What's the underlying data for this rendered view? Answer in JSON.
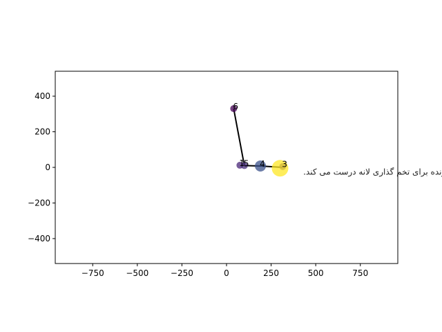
{
  "chart_data": {
    "type": "scatter",
    "title": "",
    "xlabel": "",
    "ylabel": "",
    "xlim": [
      -960,
      960
    ],
    "ylim": [
      -540,
      540
    ],
    "xticks": [
      -750,
      -500,
      -250,
      0,
      250,
      500,
      750
    ],
    "yticks": [
      -400,
      -200,
      0,
      200,
      400
    ],
    "xtick_labels": [
      "−750",
      "−500",
      "−250",
      "0",
      "250",
      "500",
      "750"
    ],
    "ytick_labels": [
      "−400",
      "−200",
      "0",
      "200",
      "400"
    ],
    "grid": false,
    "colormap": "viridis",
    "points": [
      {
        "label": "6",
        "x": 40,
        "y": 330,
        "size": 5,
        "color": "#440154"
      },
      {
        "label": "1",
        "x": 75,
        "y": 12,
        "size": 5,
        "color": "#482677"
      },
      {
        "label": "5",
        "x": 100,
        "y": 10,
        "size": 5,
        "color": "#472d7b"
      },
      {
        "label": "4",
        "x": 190,
        "y": 8,
        "size": 8,
        "color": "#3b528b"
      },
      {
        "label": "3",
        "x": 315,
        "y": 5,
        "size": 5,
        "color": "#482878"
      },
      {
        "label": "",
        "x": 300,
        "y": -5,
        "size": 12,
        "color": "#fde725"
      }
    ],
    "edges": [
      [
        [
          40,
          330
        ],
        [
          100,
          10
        ]
      ],
      [
        [
          100,
          10
        ],
        [
          190,
          8
        ]
      ],
      [
        [
          190,
          8
        ],
        [
          315,
          0
        ]
      ]
    ],
    "annotations": [
      {
        "text": "پرنده برای تخم گذاری لانه درست می کند.",
        "x": 430,
        "y": -40,
        "anchor": "end"
      }
    ]
  }
}
